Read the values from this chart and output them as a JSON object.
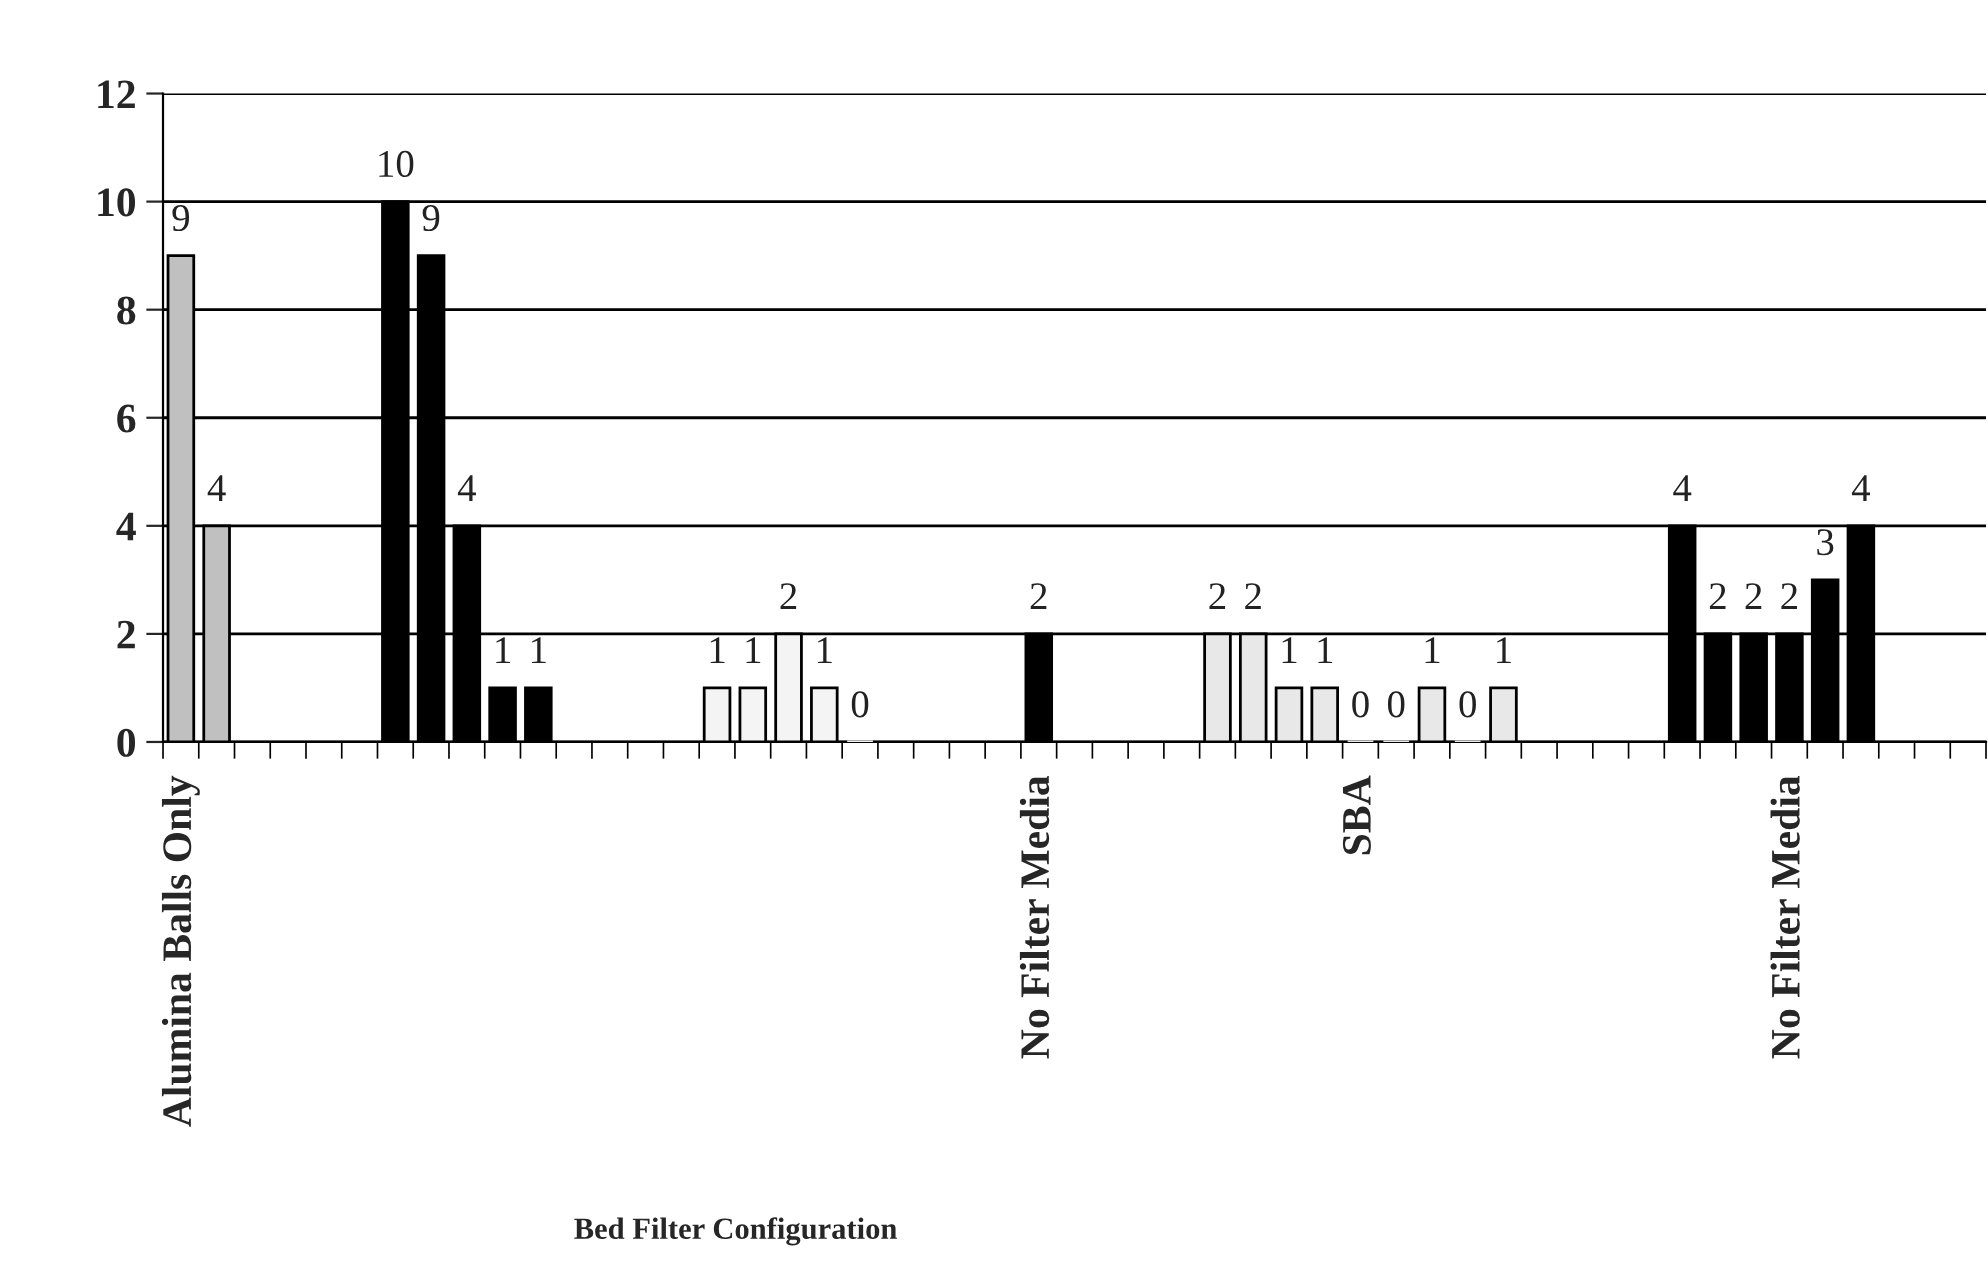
{
  "chart_data": {
    "type": "bar",
    "xlabel": "Bed Filter Configuration",
    "categories": [
      "Alumina Balls Only",
      null,
      null,
      null,
      null,
      null,
      null,
      null,
      null,
      null,
      null,
      null,
      null,
      null,
      null,
      null,
      null,
      null,
      null,
      null,
      null,
      null,
      null,
      null,
      "No Filter Media",
      null,
      null,
      null,
      null,
      null,
      null,
      null,
      null,
      "SBA",
      null,
      null,
      null,
      null,
      null,
      null,
      null,
      null,
      null,
      null,
      null,
      "No Filter Media",
      null,
      null,
      null,
      null,
      null
    ],
    "series": [
      {
        "color": "#c0c0c0",
        "values": [
          9,
          4,
          null,
          null,
          null,
          null,
          null,
          null,
          null,
          null,
          null,
          null,
          null,
          null,
          null,
          null,
          null,
          null,
          null,
          null,
          null,
          null,
          null,
          null,
          null,
          null,
          null,
          null,
          null,
          null,
          null,
          null,
          null,
          null,
          null,
          null,
          null,
          null,
          null,
          null,
          null,
          null,
          null,
          null,
          null,
          null,
          null,
          null,
          null,
          null,
          null
        ],
        "value_labels": [
          "9",
          "4",
          null,
          null,
          null,
          null,
          null,
          null,
          null,
          null,
          null,
          null,
          null,
          null,
          null,
          null,
          null,
          null,
          null,
          null,
          null,
          null,
          null,
          null,
          null,
          null,
          null,
          null,
          null,
          null,
          null,
          null,
          null,
          null,
          null,
          null,
          null,
          null,
          null,
          null,
          null,
          null,
          null,
          null,
          null,
          null,
          null,
          null,
          null,
          null,
          null
        ]
      },
      {
        "color": "#000000",
        "values": [
          null,
          null,
          null,
          null,
          null,
          null,
          10,
          9,
          4,
          1,
          1,
          null,
          null,
          null,
          null,
          null,
          null,
          null,
          null,
          null,
          null,
          null,
          null,
          null,
          2,
          null,
          null,
          null,
          null,
          null,
          null,
          null,
          null,
          null,
          null,
          null,
          null,
          null,
          null,
          null,
          null,
          null,
          4,
          2,
          2,
          2,
          3,
          4,
          null,
          null,
          null
        ],
        "value_labels": [
          null,
          null,
          null,
          null,
          null,
          null,
          "10",
          "9",
          "4",
          "1",
          "1",
          null,
          null,
          null,
          null,
          null,
          null,
          null,
          null,
          null,
          null,
          null,
          null,
          null,
          "2",
          null,
          null,
          null,
          null,
          null,
          null,
          null,
          null,
          null,
          null,
          null,
          null,
          null,
          null,
          null,
          null,
          null,
          "4",
          "2",
          "2",
          "2",
          "3",
          "4",
          null,
          null,
          null
        ]
      },
      {
        "color": "#f4f4f4",
        "values": [
          null,
          null,
          null,
          null,
          null,
          null,
          null,
          null,
          null,
          null,
          null,
          null,
          null,
          null,
          null,
          1,
          1,
          2,
          1,
          0,
          null,
          null,
          null,
          null,
          null,
          null,
          null,
          null,
          null,
          null,
          null,
          null,
          null,
          null,
          null,
          null,
          null,
          null,
          null,
          null,
          null,
          null,
          null,
          null,
          null,
          null,
          null,
          null,
          null,
          null,
          null
        ],
        "value_labels": [
          null,
          null,
          null,
          null,
          null,
          null,
          null,
          null,
          null,
          null,
          null,
          null,
          null,
          null,
          null,
          "1",
          "1",
          "2",
          "1",
          "0",
          null,
          null,
          null,
          null,
          null,
          null,
          null,
          null,
          null,
          null,
          null,
          null,
          null,
          null,
          null,
          null,
          null,
          null,
          null,
          null,
          null,
          null,
          null,
          null,
          null,
          null,
          null,
          null,
          null,
          null,
          null
        ]
      },
      {
        "color": "#e8e8e8",
        "values": [
          null,
          null,
          null,
          null,
          null,
          null,
          null,
          null,
          null,
          null,
          null,
          null,
          null,
          null,
          null,
          null,
          null,
          null,
          null,
          null,
          null,
          null,
          null,
          null,
          null,
          null,
          null,
          null,
          null,
          2,
          2,
          1,
          1,
          0,
          0,
          1,
          0,
          1,
          null,
          null,
          null,
          null,
          null,
          null,
          null,
          null,
          null,
          null,
          null,
          null,
          null
        ],
        "value_labels": [
          null,
          null,
          null,
          null,
          null,
          null,
          null,
          null,
          null,
          null,
          null,
          null,
          null,
          null,
          null,
          null,
          null,
          null,
          null,
          null,
          null,
          null,
          null,
          null,
          null,
          null,
          null,
          null,
          null,
          "2",
          "2",
          "1",
          "1",
          "0",
          "0",
          "1",
          "0",
          "1",
          null,
          null,
          null,
          null,
          null,
          null,
          null,
          null,
          null,
          null,
          null,
          null,
          null
        ]
      }
    ],
    "ylim": [
      0,
      12
    ],
    "yticks": [
      0,
      2,
      4,
      6,
      8,
      10,
      12
    ],
    "grid": "y",
    "legend": false
  }
}
